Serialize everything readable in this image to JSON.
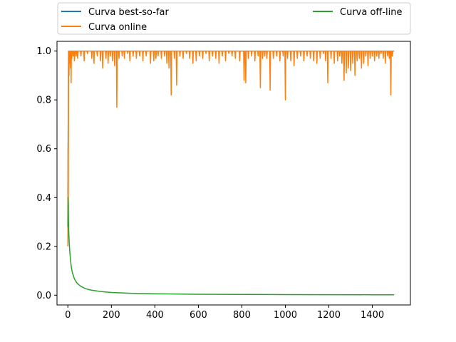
{
  "chart_data": {
    "type": "line",
    "title": "",
    "xlabel": "",
    "ylabel": "",
    "xlim": [
      -50,
      1575
    ],
    "ylim": [
      -0.04,
      1.04
    ],
    "x_ticks": [
      0,
      200,
      400,
      600,
      800,
      1000,
      1200,
      1400
    ],
    "y_ticks": [
      0.0,
      0.2,
      0.4,
      0.6,
      0.8,
      1.0
    ],
    "x_tick_labels": [
      "0",
      "200",
      "400",
      "600",
      "800",
      "1000",
      "1200",
      "1400"
    ],
    "y_tick_labels": [
      "0.0",
      "0.2",
      "0.4",
      "0.6",
      "0.8",
      "1.0"
    ],
    "grid": false,
    "legend": {
      "placement": "top",
      "columns": 2
    },
    "series": [
      {
        "name": "Curva best-so-far",
        "color": "#1f77b4",
        "points": [
          [
            0,
            0.28
          ],
          [
            1,
            0.6
          ],
          [
            2,
            0.82
          ],
          [
            3,
            1.0
          ],
          [
            1500,
            1.0
          ]
        ]
      },
      {
        "name": "Curva online",
        "color": "#ff7f0e",
        "baseline": 1.0,
        "points": [
          [
            0,
            0.2
          ],
          [
            1,
            0.6
          ],
          [
            2,
            0.35
          ],
          [
            3,
            1.0
          ]
        ],
        "dips": [
          [
            5,
            0.9
          ],
          [
            8,
            0.95
          ],
          [
            12,
            0.93
          ],
          [
            15,
            0.87
          ],
          [
            18,
            0.97
          ],
          [
            25,
            0.98
          ],
          [
            30,
            0.96
          ],
          [
            38,
            0.98
          ],
          [
            45,
            0.97
          ],
          [
            60,
            0.98
          ],
          [
            75,
            0.96
          ],
          [
            90,
            0.99
          ],
          [
            110,
            0.97
          ],
          [
            120,
            0.95
          ],
          [
            135,
            0.98
          ],
          [
            150,
            0.96
          ],
          [
            160,
            0.93
          ],
          [
            175,
            0.97
          ],
          [
            185,
            0.95
          ],
          [
            195,
            0.98
          ],
          [
            205,
            0.96
          ],
          [
            215,
            0.94
          ],
          [
            225,
            0.77
          ],
          [
            235,
            0.97
          ],
          [
            250,
            0.98
          ],
          [
            260,
            0.97
          ],
          [
            275,
            0.99
          ],
          [
            285,
            0.96
          ],
          [
            300,
            0.98
          ],
          [
            315,
            0.97
          ],
          [
            330,
            0.98
          ],
          [
            345,
            0.96
          ],
          [
            360,
            0.98
          ],
          [
            380,
            0.95
          ],
          [
            395,
            0.96
          ],
          [
            405,
            0.97
          ],
          [
            415,
            0.98
          ],
          [
            430,
            0.97
          ],
          [
            445,
            0.98
          ],
          [
            455,
            0.95
          ],
          [
            465,
            0.93
          ],
          [
            475,
            0.82
          ],
          [
            490,
            0.97
          ],
          [
            500,
            0.86
          ],
          [
            515,
            0.98
          ],
          [
            530,
            0.97
          ],
          [
            545,
            0.99
          ],
          [
            560,
            0.97
          ],
          [
            575,
            0.95
          ],
          [
            590,
            0.96
          ],
          [
            605,
            0.98
          ],
          [
            620,
            0.97
          ],
          [
            635,
            0.99
          ],
          [
            650,
            0.96
          ],
          [
            665,
            0.98
          ],
          [
            680,
            0.97
          ],
          [
            695,
            0.95
          ],
          [
            710,
            0.98
          ],
          [
            725,
            0.96
          ],
          [
            740,
            0.99
          ],
          [
            755,
            0.98
          ],
          [
            770,
            0.97
          ],
          [
            790,
            0.96
          ],
          [
            810,
            0.88
          ],
          [
            818,
            0.87
          ],
          [
            830,
            0.97
          ],
          [
            845,
            0.98
          ],
          [
            860,
            0.96
          ],
          [
            875,
            0.98
          ],
          [
            885,
            0.85
          ],
          [
            895,
            0.97
          ],
          [
            905,
            0.98
          ],
          [
            915,
            0.97
          ],
          [
            930,
            0.84
          ],
          [
            945,
            0.97
          ],
          [
            960,
            0.98
          ],
          [
            975,
            0.96
          ],
          [
            990,
            0.98
          ],
          [
            1000,
            0.8
          ],
          [
            1010,
            0.97
          ],
          [
            1025,
            0.96
          ],
          [
            1040,
            0.94
          ],
          [
            1055,
            0.97
          ],
          [
            1070,
            0.98
          ],
          [
            1085,
            0.96
          ],
          [
            1100,
            0.98
          ],
          [
            1115,
            0.97
          ],
          [
            1130,
            0.96
          ],
          [
            1145,
            0.95
          ],
          [
            1160,
            0.97
          ],
          [
            1175,
            0.99
          ],
          [
            1185,
            0.96
          ],
          [
            1195,
            0.87
          ],
          [
            1210,
            0.97
          ],
          [
            1225,
            0.95
          ],
          [
            1240,
            0.96
          ],
          [
            1250,
            0.98
          ],
          [
            1260,
            0.95
          ],
          [
            1270,
            0.88
          ],
          [
            1280,
            0.91
          ],
          [
            1290,
            0.93
          ],
          [
            1300,
            0.92
          ],
          [
            1310,
            0.95
          ],
          [
            1320,
            0.9
          ],
          [
            1330,
            0.96
          ],
          [
            1340,
            0.97
          ],
          [
            1350,
            0.93
          ],
          [
            1360,
            0.95
          ],
          [
            1370,
            0.98
          ],
          [
            1380,
            0.94
          ],
          [
            1390,
            0.97
          ],
          [
            1400,
            0.98
          ],
          [
            1410,
            0.96
          ],
          [
            1420,
            0.98
          ],
          [
            1430,
            0.97
          ],
          [
            1440,
            0.99
          ],
          [
            1450,
            0.97
          ],
          [
            1460,
            0.95
          ],
          [
            1470,
            0.98
          ],
          [
            1478,
            0.97
          ],
          [
            1485,
            0.82
          ],
          [
            1492,
            0.98
          ]
        ],
        "end": [
          1500,
          1.0
        ]
      },
      {
        "name": "Curva off-line",
        "color": "#2ca02c",
        "points": [
          [
            0,
            0.28
          ],
          [
            1,
            0.4
          ],
          [
            2,
            0.38
          ],
          [
            3,
            0.3
          ],
          [
            4,
            0.26
          ],
          [
            6,
            0.22
          ],
          [
            8,
            0.19
          ],
          [
            10,
            0.165
          ],
          [
            15,
            0.12
          ],
          [
            20,
            0.095
          ],
          [
            30,
            0.067
          ],
          [
            40,
            0.052
          ],
          [
            50,
            0.043
          ],
          [
            60,
            0.036
          ],
          [
            80,
            0.027
          ],
          [
            100,
            0.022
          ],
          [
            150,
            0.015
          ],
          [
            200,
            0.011
          ],
          [
            300,
            0.0075
          ],
          [
            400,
            0.0057
          ],
          [
            600,
            0.0039
          ],
          [
            800,
            0.003
          ],
          [
            1000,
            0.0024
          ],
          [
            1200,
            0.002
          ],
          [
            1400,
            0.0017
          ],
          [
            1500,
            0.0016
          ]
        ]
      }
    ]
  }
}
